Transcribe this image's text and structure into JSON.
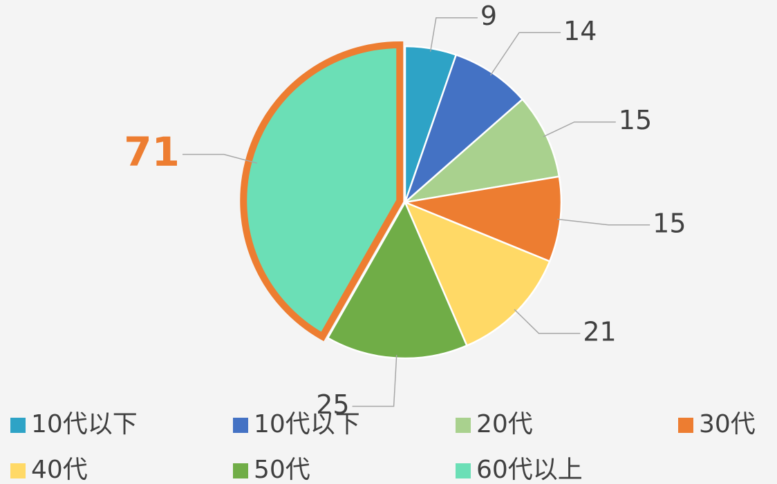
{
  "chart_data": {
    "type": "pie",
    "categories": [
      "10代以下",
      "10代以下",
      "20代",
      "30代",
      "40代",
      "50代",
      "60代以上"
    ],
    "values": [
      9,
      14,
      15,
      15,
      21,
      25,
      71
    ],
    "colors": [
      "#2ea3c6",
      "#4472c4",
      "#a9d18e",
      "#ed7d31",
      "#ffd966",
      "#70ad47",
      "#6bdfb6"
    ],
    "highlight": 6,
    "highlight_color": "#ed7d31",
    "legend": "bottom"
  }
}
